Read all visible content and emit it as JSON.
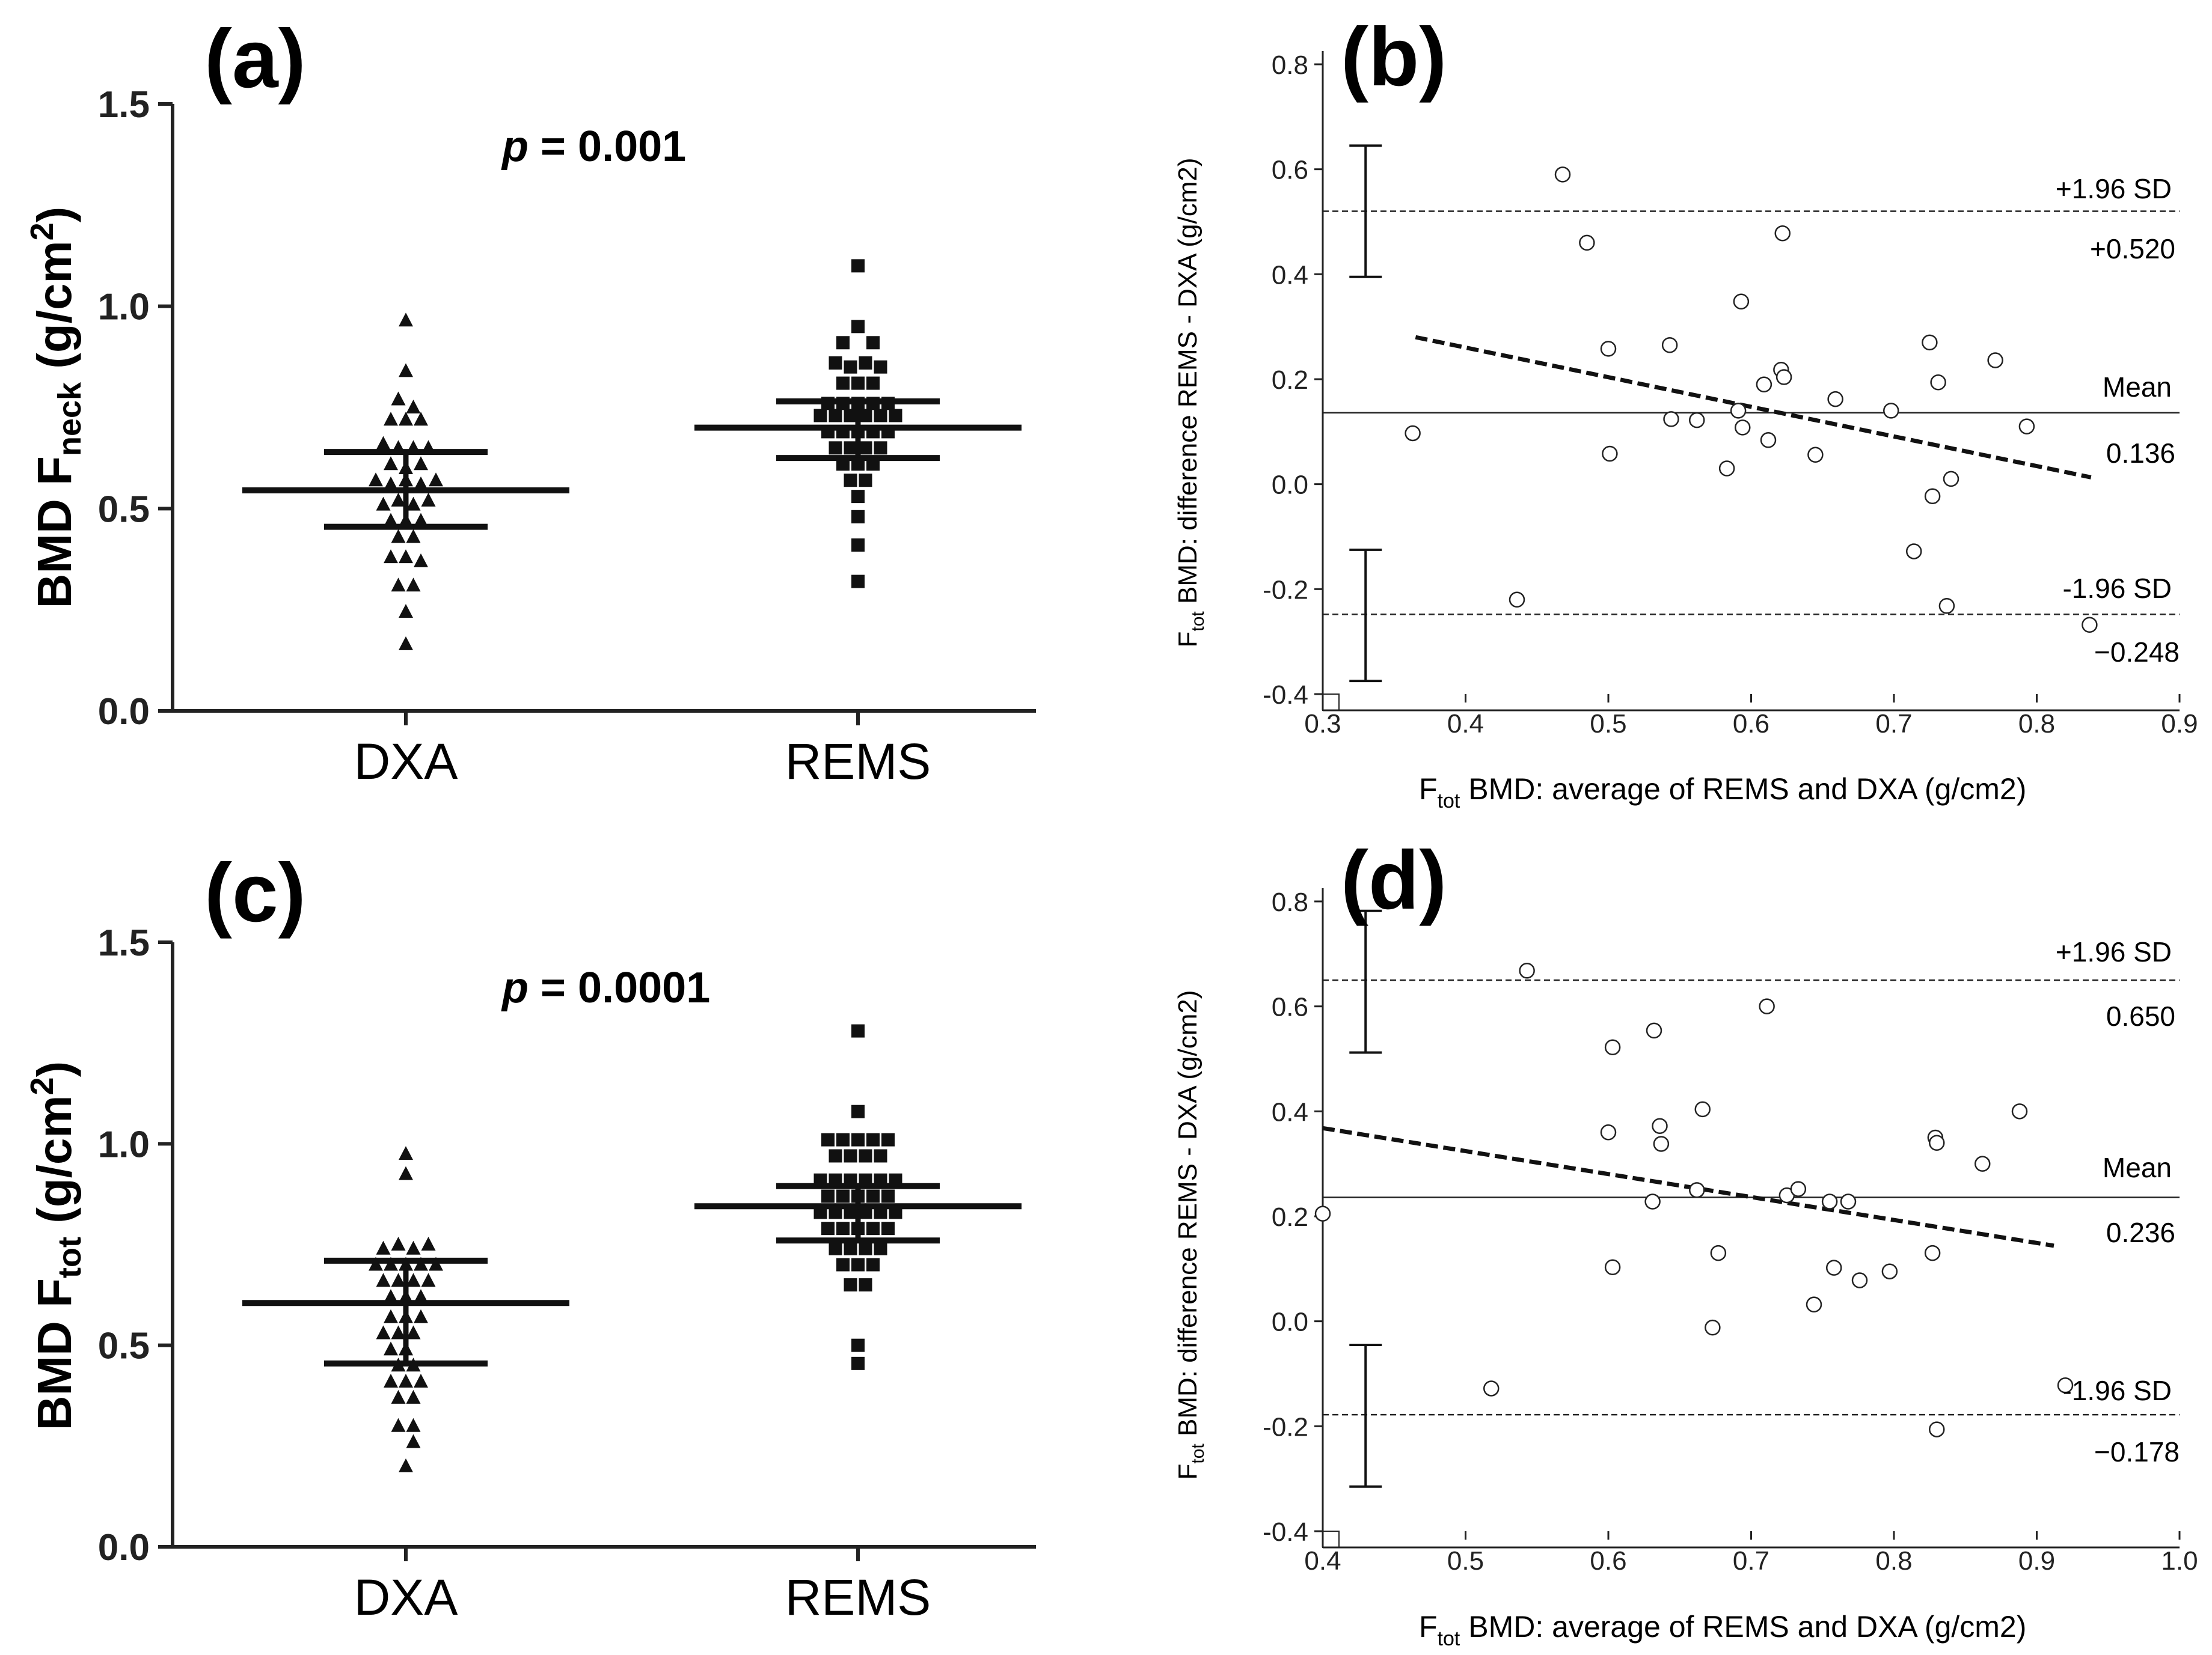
{
  "chart_data": [
    {
      "id": "a",
      "type": "scatter",
      "panel_label": "(a)",
      "title": "",
      "ylabel_main": "BMD F",
      "ylabel_sub": "neck",
      "ylabel_unit_pre": " (g/cm",
      "ylabel_unit_sup": "2",
      "ylabel_unit_post": ")",
      "ylim": [
        0,
        1.5
      ],
      "yticks": [
        "0.0",
        "0.5",
        "1.0",
        "1.5"
      ],
      "categories": [
        "DXA",
        "REMS"
      ],
      "p_italic": "p",
      "p_rest": " = 0.001",
      "series": [
        {
          "name": "DXA",
          "marker": "triangle",
          "mean": 0.545,
          "sd_low": 0.455,
          "sd_high": 0.64,
          "points": [
            {
              "dx": 0,
              "y": 0.965
            },
            {
              "dx": 0,
              "y": 0.84
            },
            {
              "dx": -0.5,
              "y": 0.77
            },
            {
              "dx": 0.5,
              "y": 0.75
            },
            {
              "dx": -1,
              "y": 0.72
            },
            {
              "dx": 0,
              "y": 0.72
            },
            {
              "dx": 1,
              "y": 0.72
            },
            {
              "dx": -1.5,
              "y": 0.66
            },
            {
              "dx": -0.5,
              "y": 0.65
            },
            {
              "dx": 0.5,
              "y": 0.65
            },
            {
              "dx": 1.5,
              "y": 0.65
            },
            {
              "dx": -1,
              "y": 0.61
            },
            {
              "dx": 0,
              "y": 0.6
            },
            {
              "dx": 1,
              "y": 0.61
            },
            {
              "dx": -2,
              "y": 0.57
            },
            {
              "dx": -1,
              "y": 0.56
            },
            {
              "dx": 0,
              "y": 0.57
            },
            {
              "dx": 1,
              "y": 0.56
            },
            {
              "dx": 2,
              "y": 0.57
            },
            {
              "dx": -1.5,
              "y": 0.51
            },
            {
              "dx": -0.5,
              "y": 0.52
            },
            {
              "dx": 0.5,
              "y": 0.51
            },
            {
              "dx": 1.5,
              "y": 0.52
            },
            {
              "dx": -1,
              "y": 0.47
            },
            {
              "dx": 0,
              "y": 0.47
            },
            {
              "dx": 1,
              "y": 0.47
            },
            {
              "dx": -0.5,
              "y": 0.43
            },
            {
              "dx": 0.5,
              "y": 0.43
            },
            {
              "dx": -1,
              "y": 0.38
            },
            {
              "dx": 0,
              "y": 0.38
            },
            {
              "dx": 1,
              "y": 0.37
            },
            {
              "dx": -0.5,
              "y": 0.31
            },
            {
              "dx": 0.5,
              "y": 0.31
            },
            {
              "dx": 0,
              "y": 0.245
            },
            {
              "dx": 0,
              "y": 0.165
            }
          ]
        },
        {
          "name": "REMS",
          "marker": "square",
          "mean": 0.7,
          "sd_low": 0.625,
          "sd_high": 0.765,
          "points": [
            {
              "dx": 0,
              "y": 1.1
            },
            {
              "dx": 0,
              "y": 0.95
            },
            {
              "dx": -1,
              "y": 0.91
            },
            {
              "dx": 1,
              "y": 0.91
            },
            {
              "dx": -1.5,
              "y": 0.86
            },
            {
              "dx": -0.5,
              "y": 0.85
            },
            {
              "dx": 0.5,
              "y": 0.86
            },
            {
              "dx": 1.5,
              "y": 0.85
            },
            {
              "dx": -1,
              "y": 0.81
            },
            {
              "dx": 0,
              "y": 0.81
            },
            {
              "dx": 1,
              "y": 0.81
            },
            {
              "dx": -2,
              "y": 0.76
            },
            {
              "dx": -1,
              "y": 0.76
            },
            {
              "dx": 0,
              "y": 0.76
            },
            {
              "dx": 1,
              "y": 0.76
            },
            {
              "dx": 2,
              "y": 0.76
            },
            {
              "dx": -2.5,
              "y": 0.73
            },
            {
              "dx": -1.5,
              "y": 0.73
            },
            {
              "dx": -0.5,
              "y": 0.73
            },
            {
              "dx": 0.5,
              "y": 0.73
            },
            {
              "dx": 1.5,
              "y": 0.73
            },
            {
              "dx": 2.5,
              "y": 0.73
            },
            {
              "dx": -2,
              "y": 0.69
            },
            {
              "dx": -1,
              "y": 0.69
            },
            {
              "dx": 0,
              "y": 0.69
            },
            {
              "dx": 1,
              "y": 0.69
            },
            {
              "dx": 2,
              "y": 0.69
            },
            {
              "dx": -1.5,
              "y": 0.65
            },
            {
              "dx": -0.5,
              "y": 0.65
            },
            {
              "dx": 0.5,
              "y": 0.65
            },
            {
              "dx": 1.5,
              "y": 0.65
            },
            {
              "dx": -1,
              "y": 0.61
            },
            {
              "dx": 0,
              "y": 0.61
            },
            {
              "dx": 1,
              "y": 0.61
            },
            {
              "dx": -0.5,
              "y": 0.57
            },
            {
              "dx": 0.5,
              "y": 0.57
            },
            {
              "dx": 0,
              "y": 0.53
            },
            {
              "dx": 0,
              "y": 0.48
            },
            {
              "dx": 0,
              "y": 0.41
            },
            {
              "dx": 0,
              "y": 0.32
            }
          ]
        }
      ]
    },
    {
      "id": "b",
      "type": "scatter",
      "subtype": "bland-altman",
      "panel_label": "(b)",
      "title": "",
      "xlabel_pre": "F",
      "xlabel_sub": "tot",
      "xlabel_post": "  BMD: average of REMS and DXA (g/cm2)",
      "ylabel_pre": "F",
      "ylabel_sub": "tot",
      "ylabel_post": " BMD: difference REMS - DXA (g/cm2)",
      "xlim": [
        0.3,
        0.9
      ],
      "ylim": [
        -0.4,
        0.8
      ],
      "xticks": [
        "0.3",
        "0.4",
        "0.5",
        "0.6",
        "0.7",
        "0.8",
        "0.9"
      ],
      "yticks": [
        "-0.4",
        "-0.2",
        "0.0",
        "0.2",
        "0.4",
        "0.6",
        "0.8"
      ],
      "mean": 0.136,
      "upper_loa": 0.52,
      "lower_loa": -0.248,
      "upper_loa_label": "+1.96 SD",
      "upper_loa_value": "+0.520",
      "mean_label": "Mean",
      "mean_value": "0.136",
      "lower_loa_label": "-1.96 SD",
      "lower_loa_value": "−0.248",
      "regression": [
        [
          0.365,
          0.28
        ],
        [
          0.838,
          0.013
        ]
      ],
      "ci_upper_loa": [
        0.395,
        0.645
      ],
      "ci_lower_loa": [
        -0.375,
        -0.125
      ],
      "ci_x": 0.33,
      "points": [
        [
          0.363,
          0.097
        ],
        [
          0.436,
          -0.22
        ],
        [
          0.468,
          0.59
        ],
        [
          0.485,
          0.46
        ],
        [
          0.5,
          0.258
        ],
        [
          0.501,
          0.058
        ],
        [
          0.543,
          0.265
        ],
        [
          0.544,
          0.124
        ],
        [
          0.562,
          0.122
        ],
        [
          0.583,
          0.03
        ],
        [
          0.591,
          0.14
        ],
        [
          0.593,
          0.348
        ],
        [
          0.594,
          0.108
        ],
        [
          0.609,
          0.19
        ],
        [
          0.612,
          0.084
        ],
        [
          0.621,
          0.218
        ],
        [
          0.622,
          0.478
        ],
        [
          0.623,
          0.204
        ],
        [
          0.645,
          0.056
        ],
        [
          0.659,
          0.162
        ],
        [
          0.698,
          0.14
        ],
        [
          0.714,
          -0.128
        ],
        [
          0.725,
          0.27
        ],
        [
          0.727,
          -0.023
        ],
        [
          0.731,
          0.194
        ],
        [
          0.737,
          -0.232
        ],
        [
          0.74,
          0.01
        ],
        [
          0.771,
          0.236
        ],
        [
          0.793,
          0.11
        ],
        [
          0.837,
          -0.268
        ]
      ]
    },
    {
      "id": "c",
      "type": "scatter",
      "panel_label": "(c)",
      "title": "",
      "ylabel_main": "BMD F",
      "ylabel_sub": "tot",
      "ylabel_unit_pre": " (g/cm",
      "ylabel_unit_sup": "2",
      "ylabel_unit_post": ")",
      "ylim": [
        0,
        1.5
      ],
      "yticks": [
        "0.0",
        "0.5",
        "1.0",
        "1.5"
      ],
      "categories": [
        "DXA",
        "REMS"
      ],
      "p_italic": "p",
      "p_rest": " = 0.0001",
      "series": [
        {
          "name": "DXA",
          "marker": "triangle",
          "mean": 0.605,
          "sd_low": 0.455,
          "sd_high": 0.71,
          "points": [
            {
              "dx": 0,
              "y": 0.975
            },
            {
              "dx": 0,
              "y": 0.925
            },
            {
              "dx": -1.5,
              "y": 0.74
            },
            {
              "dx": -0.5,
              "y": 0.75
            },
            {
              "dx": 0.5,
              "y": 0.74
            },
            {
              "dx": 1.5,
              "y": 0.75
            },
            {
              "dx": -2,
              "y": 0.7
            },
            {
              "dx": -1,
              "y": 0.7
            },
            {
              "dx": 0,
              "y": 0.7
            },
            {
              "dx": 1,
              "y": 0.7
            },
            {
              "dx": 2,
              "y": 0.7
            },
            {
              "dx": -1.5,
              "y": 0.66
            },
            {
              "dx": -0.5,
              "y": 0.66
            },
            {
              "dx": 0.5,
              "y": 0.66
            },
            {
              "dx": 1.5,
              "y": 0.66
            },
            {
              "dx": -1,
              "y": 0.62
            },
            {
              "dx": 0,
              "y": 0.62
            },
            {
              "dx": 1,
              "y": 0.62
            },
            {
              "dx": -1,
              "y": 0.57
            },
            {
              "dx": 0,
              "y": 0.57
            },
            {
              "dx": 1,
              "y": 0.57
            },
            {
              "dx": -1.5,
              "y": 0.53
            },
            {
              "dx": -0.5,
              "y": 0.53
            },
            {
              "dx": 0.5,
              "y": 0.53
            },
            {
              "dx": -1,
              "y": 0.49
            },
            {
              "dx": 0,
              "y": 0.49
            },
            {
              "dx": -0.5,
              "y": 0.45
            },
            {
              "dx": 0.5,
              "y": 0.45
            },
            {
              "dx": -1,
              "y": 0.41
            },
            {
              "dx": 0,
              "y": 0.41
            },
            {
              "dx": 1,
              "y": 0.41
            },
            {
              "dx": -0.5,
              "y": 0.37
            },
            {
              "dx": 0.5,
              "y": 0.37
            },
            {
              "dx": -0.5,
              "y": 0.3
            },
            {
              "dx": 0.5,
              "y": 0.3
            },
            {
              "dx": 0.5,
              "y": 0.26
            },
            {
              "dx": 0,
              "y": 0.2
            }
          ]
        },
        {
          "name": "REMS",
          "marker": "square",
          "mean": 0.845,
          "sd_low": 0.76,
          "sd_high": 0.895,
          "points": [
            {
              "dx": 0,
              "y": 1.28
            },
            {
              "dx": 0,
              "y": 1.08
            },
            {
              "dx": -2,
              "y": 1.01
            },
            {
              "dx": -1,
              "y": 1.01
            },
            {
              "dx": 0,
              "y": 1.01
            },
            {
              "dx": 1,
              "y": 1.01
            },
            {
              "dx": 2,
              "y": 1.01
            },
            {
              "dx": -1.5,
              "y": 0.97
            },
            {
              "dx": -0.5,
              "y": 0.97
            },
            {
              "dx": 0.5,
              "y": 0.97
            },
            {
              "dx": 1.5,
              "y": 0.97
            },
            {
              "dx": -2.5,
              "y": 0.91
            },
            {
              "dx": -1.5,
              "y": 0.91
            },
            {
              "dx": -0.5,
              "y": 0.91
            },
            {
              "dx": 0.5,
              "y": 0.91
            },
            {
              "dx": 1.5,
              "y": 0.91
            },
            {
              "dx": 2.5,
              "y": 0.91
            },
            {
              "dx": -2,
              "y": 0.87
            },
            {
              "dx": -1,
              "y": 0.87
            },
            {
              "dx": 0,
              "y": 0.87
            },
            {
              "dx": 1,
              "y": 0.87
            },
            {
              "dx": 2,
              "y": 0.87
            },
            {
              "dx": -2.5,
              "y": 0.83
            },
            {
              "dx": -1.5,
              "y": 0.83
            },
            {
              "dx": -0.5,
              "y": 0.83
            },
            {
              "dx": 0.5,
              "y": 0.83
            },
            {
              "dx": 1.5,
              "y": 0.83
            },
            {
              "dx": 2.5,
              "y": 0.83
            },
            {
              "dx": -2,
              "y": 0.79
            },
            {
              "dx": -1,
              "y": 0.79
            },
            {
              "dx": 0,
              "y": 0.79
            },
            {
              "dx": 1,
              "y": 0.79
            },
            {
              "dx": 2,
              "y": 0.79
            },
            {
              "dx": -1.5,
              "y": 0.74
            },
            {
              "dx": -0.5,
              "y": 0.74
            },
            {
              "dx": 0.5,
              "y": 0.74
            },
            {
              "dx": 1.5,
              "y": 0.74
            },
            {
              "dx": -1,
              "y": 0.7
            },
            {
              "dx": 0,
              "y": 0.7
            },
            {
              "dx": 1,
              "y": 0.7
            },
            {
              "dx": -0.5,
              "y": 0.65
            },
            {
              "dx": 0.5,
              "y": 0.65
            },
            {
              "dx": 0,
              "y": 0.5
            },
            {
              "dx": 0,
              "y": 0.455
            }
          ]
        }
      ]
    },
    {
      "id": "d",
      "type": "scatter",
      "subtype": "bland-altman",
      "panel_label": "(d)",
      "title": "",
      "xlabel_pre": "F",
      "xlabel_sub": "tot",
      "xlabel_post": "  BMD: average of REMS and DXA (g/cm2)",
      "ylabel_pre": "F",
      "ylabel_sub": "tot",
      "ylabel_post": " BMD: difference REMS - DXA (g/cm2)",
      "xlim": [
        0.4,
        1.0
      ],
      "ylim": [
        -0.4,
        0.8
      ],
      "xticks": [
        "0.4",
        "0.5",
        "0.6",
        "0.7",
        "0.8",
        "0.9",
        "1.0"
      ],
      "yticks": [
        "-0.4",
        "-0.2",
        "0.0",
        "0.2",
        "0.4",
        "0.6",
        "0.8"
      ],
      "mean": 0.236,
      "upper_loa": 0.65,
      "lower_loa": -0.178,
      "upper_loa_label": "+1.96 SD",
      "upper_loa_value": "0.650",
      "mean_label": "Mean",
      "mean_value": "0.236",
      "lower_loa_label": "-1.96 SD",
      "lower_loa_value": "−0.178",
      "regression": [
        [
          0.4,
          0.368
        ],
        [
          0.912,
          0.144
        ]
      ],
      "ci_upper_loa": [
        0.512,
        0.782
      ],
      "ci_lower_loa": [
        -0.315,
        -0.045
      ],
      "ci_x": 0.43,
      "points": [
        [
          0.4,
          0.205
        ],
        [
          0.518,
          -0.128
        ],
        [
          0.543,
          0.668
        ],
        [
          0.6,
          0.36
        ],
        [
          0.603,
          0.522
        ],
        [
          0.603,
          0.103
        ],
        [
          0.631,
          0.228
        ],
        [
          0.632,
          0.554
        ],
        [
          0.636,
          0.372
        ],
        [
          0.637,
          0.338
        ],
        [
          0.662,
          0.25
        ],
        [
          0.666,
          0.404
        ],
        [
          0.673,
          -0.012
        ],
        [
          0.677,
          0.13
        ],
        [
          0.711,
          0.6
        ],
        [
          0.725,
          0.24
        ],
        [
          0.733,
          0.252
        ],
        [
          0.744,
          0.032
        ],
        [
          0.755,
          0.228
        ],
        [
          0.758,
          0.102
        ],
        [
          0.768,
          0.228
        ],
        [
          0.776,
          0.078
        ],
        [
          0.797,
          0.095
        ],
        [
          0.827,
          0.13
        ],
        [
          0.829,
          0.35
        ],
        [
          0.83,
          0.34
        ],
        [
          0.83,
          -0.206
        ],
        [
          0.862,
          0.3
        ],
        [
          0.888,
          0.4
        ],
        [
          0.92,
          -0.122
        ]
      ]
    }
  ]
}
